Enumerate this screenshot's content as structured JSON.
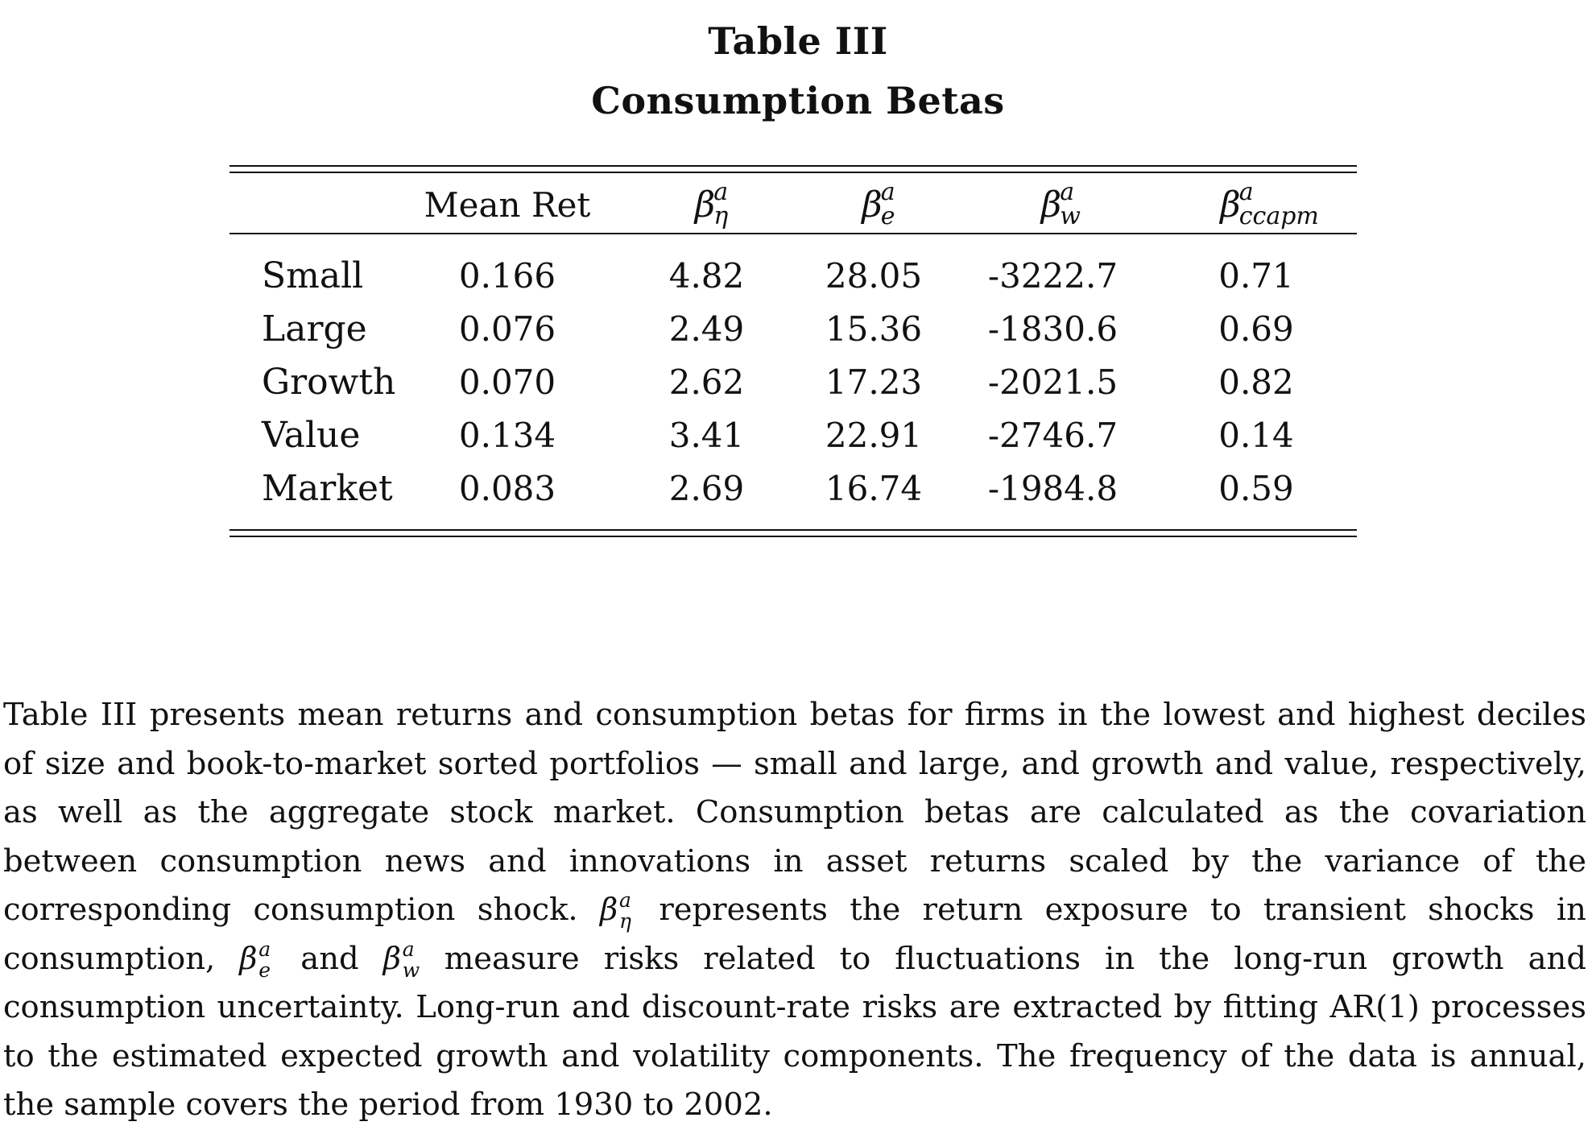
{
  "table": {
    "number": "Table III",
    "title": "Consumption Betas",
    "header": {
      "col1": "Mean Ret",
      "beta_symbol": "β",
      "beta_sup": "a",
      "col2_sub": "η",
      "col3_sub": "e",
      "col4_sub": "w",
      "col5_sub": "ccapm"
    },
    "rows": [
      {
        "label": "Small",
        "mean_ret": "0.166",
        "beta_eta": "4.82",
        "beta_e": "28.05",
        "beta_w": "-3222.7",
        "beta_ccapm": "0.71"
      },
      {
        "label": "Large",
        "mean_ret": "0.076",
        "beta_eta": "2.49",
        "beta_e": "15.36",
        "beta_w": "-1830.6",
        "beta_ccapm": "0.69"
      },
      {
        "label": "Growth",
        "mean_ret": "0.070",
        "beta_eta": "2.62",
        "beta_e": "17.23",
        "beta_w": "-2021.5",
        "beta_ccapm": "0.82"
      },
      {
        "label": "Value",
        "mean_ret": "0.134",
        "beta_eta": "3.41",
        "beta_e": "22.91",
        "beta_w": "-2746.7",
        "beta_ccapm": "0.14"
      },
      {
        "label": "Market",
        "mean_ret": "0.083",
        "beta_eta": "2.69",
        "beta_e": "16.74",
        "beta_w": "-1984.8",
        "beta_ccapm": "0.59"
      }
    ]
  },
  "caption": {
    "part1": "Table III presents mean returns and consumption betas for firms in the lowest and highest deciles of size and book-to-market sorted portfolios — small and large, and growth and value, respectively, as well as the aggregate stock market. Consumption betas are calculated as the covariation between consumption news and innovations in asset returns scaled by the variance of the corresponding consumption shock.",
    "part2": "represents the return exposure to transient shocks in consumption,",
    "part3": "and",
    "part4": "measure risks related to fluctuations in the long-run growth and consumption uncertainty. Long-run and discount-rate risks are extracted by fitting AR(1) processes to the estimated expected growth and volatility components. The frequency of the data is annual, the sample covers the period from 1930 to 2002."
  }
}
